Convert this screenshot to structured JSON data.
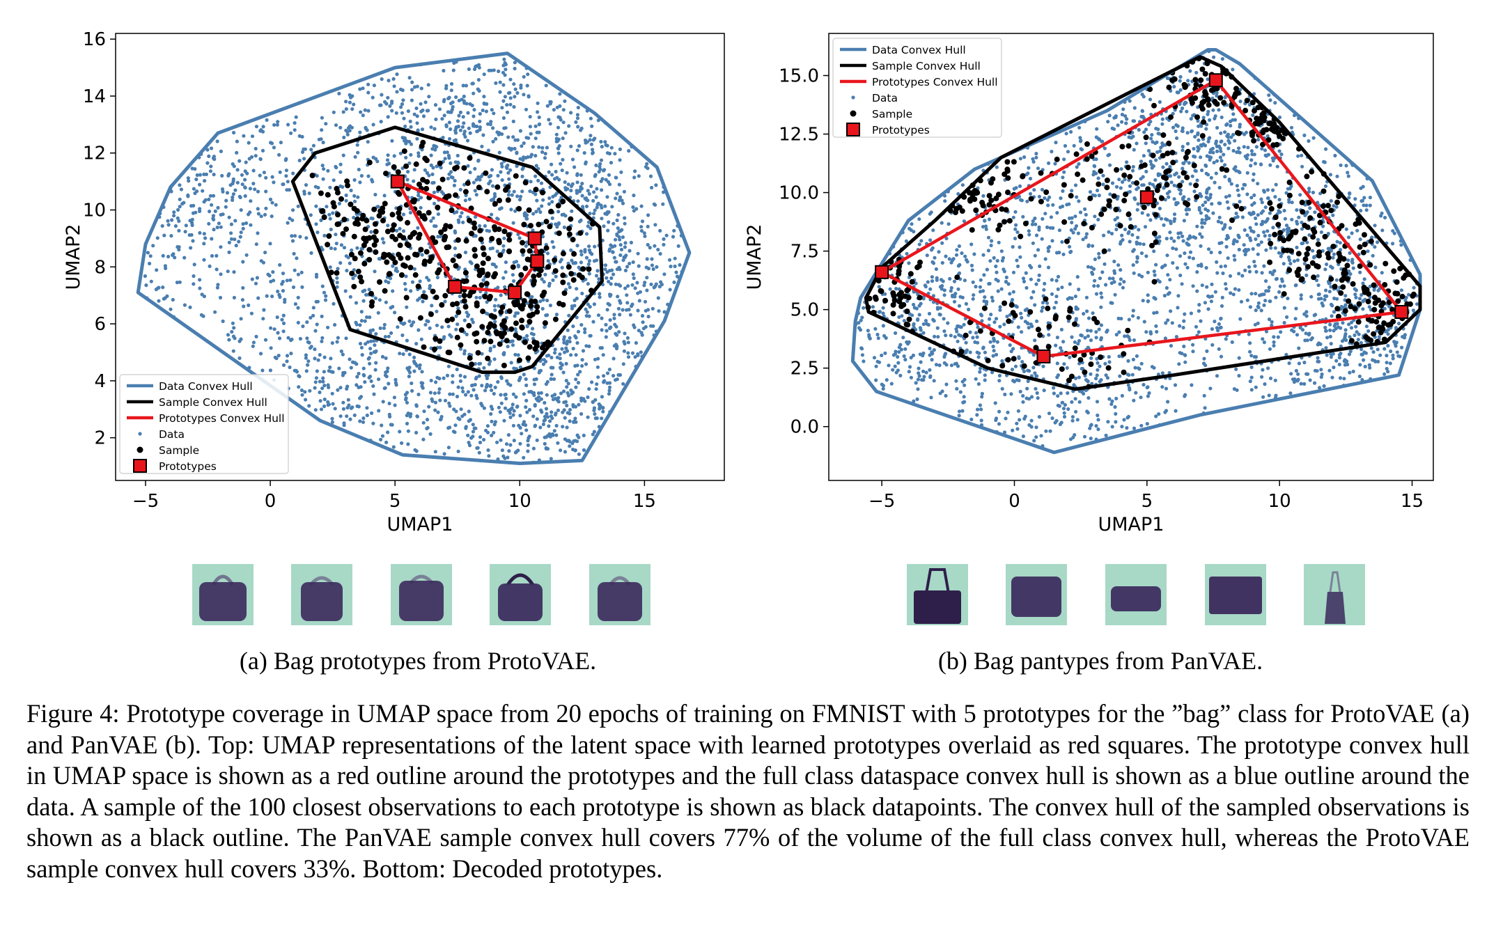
{
  "figure": {
    "caption": "Figure 4: Prototype coverage in UMAP space from 20 epochs of training on FMNIST with 5 prototypes for the ”bag” class for ProtoVAE (a) and PanVAE (b). Top: UMAP representations of the latent space with learned prototypes overlaid as red squares. The prototype convex hull in UMAP space is shown as a red outline around the prototypes and the full class dataspace convex hull is shown as a blue outline around the data. A sample of the 100 closest observations to each prototype is shown as black datapoints. The convex hull of the sampled observations is shown as a black outline. The PanVAE sample convex hull covers 77% of the volume of the full class convex hull, whereas the ProtoVAE sample convex hull covers 33%. Bottom: Decoded prototypes.",
    "subcaption_a": "(a) Bag prototypes from ProtoVAE.",
    "subcaption_b": "(b) Bag pantypes from PanVAE."
  },
  "colors": {
    "data": "#4a7eb0",
    "hull_data": "#4a7eb0",
    "hull_sample": "#000000",
    "hull_proto": "#e8161c",
    "proto_fill": "#e8161c",
    "thumb_bg": "#a8d8c6",
    "thumb_fg": "#3b2a5c"
  },
  "chart_data": [
    {
      "type": "scatter",
      "id": "a",
      "xlabel": "UMAP1",
      "ylabel": "UMAP2",
      "xlim": [
        -6.2,
        18.2
      ],
      "ylim": [
        0.5,
        16.2
      ],
      "xticks": [
        -5,
        0,
        5,
        10,
        15
      ],
      "yticks": [
        2,
        4,
        6,
        8,
        10,
        12,
        14,
        16
      ],
      "tick_labels_x": [
        "−5",
        "0",
        "5",
        "10",
        "15"
      ],
      "tick_labels_y": [
        "2",
        "4",
        "6",
        "8",
        "10",
        "12",
        "14",
        "16"
      ],
      "legend_position": "bottom-left",
      "legend": [
        "Data Convex Hull",
        "Sample Convex Hull",
        "Prototypes Convex Hull",
        "Data",
        "Sample",
        "Prototypes"
      ],
      "data_hull": [
        [
          -5.3,
          7.1
        ],
        [
          -5.0,
          8.8
        ],
        [
          -4.0,
          10.8
        ],
        [
          -2.1,
          12.7
        ],
        [
          5.0,
          15.0
        ],
        [
          9.5,
          15.5
        ],
        [
          13.0,
          13.4
        ],
        [
          15.5,
          11.5
        ],
        [
          16.8,
          8.5
        ],
        [
          15.8,
          6.1
        ],
        [
          12.5,
          1.2
        ],
        [
          10.0,
          1.1
        ],
        [
          5.3,
          1.4
        ],
        [
          2.0,
          2.6
        ]
      ],
      "sample_hull": [
        [
          0.9,
          11.0
        ],
        [
          1.8,
          12.0
        ],
        [
          5.0,
          12.9
        ],
        [
          10.5,
          11.5
        ],
        [
          13.2,
          9.4
        ],
        [
          13.3,
          7.5
        ],
        [
          10.5,
          4.5
        ],
        [
          9.8,
          4.3
        ],
        [
          8.5,
          4.3
        ],
        [
          3.2,
          5.8
        ]
      ],
      "proto_hull": [
        [
          5.1,
          11.0
        ],
        [
          10.6,
          9.0
        ],
        [
          10.7,
          8.2
        ],
        [
          9.8,
          7.1
        ],
        [
          7.4,
          7.3
        ]
      ],
      "prototypes": [
        [
          5.1,
          11.0
        ],
        [
          10.6,
          9.0
        ],
        [
          10.7,
          8.2
        ],
        [
          9.8,
          7.1
        ],
        [
          7.4,
          7.3
        ]
      ],
      "data_density": [
        [
          -3.5,
          10.5,
          2.2,
          1.8
        ],
        [
          2.0,
          10.0,
          2.8,
          2.2
        ],
        [
          7.5,
          13.5,
          2.5,
          1.3
        ],
        [
          9.0,
          9.0,
          2.5,
          2.5
        ],
        [
          12.0,
          11.0,
          2.0,
          1.8
        ],
        [
          14.0,
          7.5,
          1.5,
          2.0
        ],
        [
          8.0,
          3.5,
          2.8,
          1.6
        ],
        [
          3.5,
          4.0,
          2.2,
          1.6
        ],
        [
          11.5,
          3.0,
          1.6,
          1.4
        ]
      ],
      "sample_density": [
        [
          6.5,
          10.2,
          1.5,
          1.3
        ],
        [
          10.8,
          8.3,
          1.4,
          1.3
        ],
        [
          4.0,
          9.0,
          1.6,
          1.4
        ],
        [
          9.5,
          6.2,
          1.4,
          1.0
        ],
        [
          7.5,
          8.0,
          1.8,
          1.5
        ]
      ]
    },
    {
      "type": "scatter",
      "id": "b",
      "xlabel": "UMAP1",
      "ylabel": "UMAP2",
      "xlim": [
        -7.0,
        15.8
      ],
      "ylim": [
        -2.3,
        16.8
      ],
      "xticks": [
        -5,
        0,
        5,
        10,
        15
      ],
      "yticks": [
        0.0,
        2.5,
        5.0,
        7.5,
        10.0,
        12.5,
        15.0
      ],
      "tick_labels_x": [
        "−5",
        "0",
        "5",
        "10",
        "15"
      ],
      "tick_labels_y": [
        "0.0",
        "2.5",
        "5.0",
        "7.5",
        "10.0",
        "12.5",
        "15.0"
      ],
      "legend_position": "top-left",
      "legend": [
        "Data Convex Hull",
        "Sample Convex Hull",
        "Prototypes Convex Hull",
        "Data",
        "Sample",
        "Prototypes"
      ],
      "data_hull": [
        [
          -5.8,
          5.5
        ],
        [
          -6.0,
          4.5
        ],
        [
          -6.1,
          2.8
        ],
        [
          -5.2,
          1.5
        ],
        [
          1.5,
          -1.1
        ],
        [
          7.0,
          0.5
        ],
        [
          14.5,
          2.2
        ],
        [
          15.3,
          5.0
        ],
        [
          15.3,
          6.5
        ],
        [
          13.5,
          10.5
        ],
        [
          8.5,
          15.5
        ],
        [
          7.6,
          16.1
        ],
        [
          7.3,
          16.1
        ],
        [
          3.5,
          13.5
        ],
        [
          -1.5,
          11.0
        ],
        [
          -4.0,
          8.8
        ]
      ],
      "sample_hull": [
        [
          -5.0,
          6.8
        ],
        [
          -5.6,
          5.5
        ],
        [
          -5.5,
          4.9
        ],
        [
          -1.0,
          2.5
        ],
        [
          2.3,
          1.6
        ],
        [
          6.0,
          2.2
        ],
        [
          14.0,
          3.6
        ],
        [
          15.3,
          5.0
        ],
        [
          15.3,
          6.0
        ],
        [
          10.0,
          13.0
        ],
        [
          7.8,
          15.4
        ],
        [
          7.0,
          15.8
        ],
        [
          -0.5,
          11.5
        ],
        [
          -3.0,
          8.8
        ]
      ],
      "proto_hull": [
        [
          -5.0,
          6.6
        ],
        [
          1.1,
          3.0
        ],
        [
          14.6,
          4.9
        ],
        [
          7.6,
          14.8
        ]
      ],
      "prototypes": [
        [
          -5.0,
          6.6
        ],
        [
          1.1,
          3.0
        ],
        [
          14.6,
          4.9
        ],
        [
          7.6,
          14.8
        ],
        [
          5.0,
          9.8
        ]
      ],
      "data_density": [
        [
          0.5,
          8.0,
          3.2,
          3.0
        ],
        [
          5.0,
          8.5,
          2.8,
          3.2
        ],
        [
          9.5,
          9.5,
          2.5,
          3.0
        ],
        [
          11.5,
          6.5,
          2.5,
          2.5
        ],
        [
          1.5,
          2.0,
          2.8,
          1.8
        ],
        [
          -3.5,
          4.5,
          1.6,
          1.8
        ],
        [
          6.5,
          12.5,
          2.0,
          1.8
        ],
        [
          13.0,
          3.5,
          1.6,
          1.5
        ]
      ],
      "sample_density": [
        [
          1.2,
          3.5,
          1.8,
          1.4
        ],
        [
          4.5,
          10.5,
          1.8,
          1.2
        ],
        [
          7.3,
          14.8,
          1.2,
          0.8
        ],
        [
          14.0,
          5.0,
          1.0,
          1.2
        ],
        [
          -4.5,
          6.0,
          0.7,
          1.0
        ],
        [
          10.0,
          13.0,
          0.8,
          0.8
        ],
        [
          -1.5,
          10.0,
          1.2,
          0.8
        ],
        [
          11.5,
          8.0,
          1.2,
          1.5
        ]
      ]
    }
  ],
  "thumbnails_a": [
    "bag-1",
    "bag-2",
    "bag-3",
    "bag-4",
    "bag-5"
  ],
  "thumbnails_b": [
    "bag-1",
    "bag-2",
    "bag-3",
    "bag-4",
    "bag-5"
  ]
}
